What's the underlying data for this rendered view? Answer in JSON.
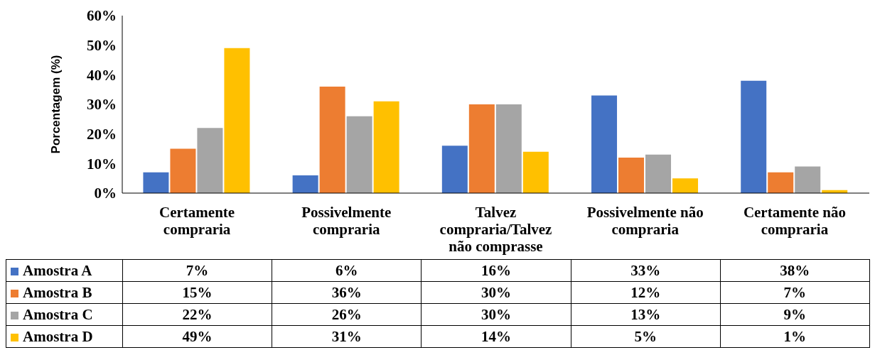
{
  "chart_data": {
    "type": "bar",
    "ylabel": "Porcentagem (%)",
    "categories": [
      "Certamente compraria",
      "Possivelmente compraria",
      "Talvez compraria/Talvez não comprasse",
      "Possivelmente não compraria",
      "Certamente não compraria"
    ],
    "series": [
      {
        "name": "Amostra A",
        "color": "#4472c4",
        "values": [
          7,
          6,
          16,
          33,
          38
        ],
        "value_labels": [
          "7%",
          "6%",
          "16%",
          "33%",
          "38%"
        ]
      },
      {
        "name": "Amostra B",
        "color": "#ed7d31",
        "values": [
          15,
          36,
          30,
          12,
          7
        ],
        "value_labels": [
          "15%",
          "36%",
          "30%",
          "12%",
          "7%"
        ]
      },
      {
        "name": "Amostra C",
        "color": "#a5a5a5",
        "values": [
          22,
          26,
          30,
          13,
          9
        ],
        "value_labels": [
          "22%",
          "26%",
          "30%",
          "13%",
          "9%"
        ]
      },
      {
        "name": "Amostra D",
        "color": "#ffc000",
        "values": [
          49,
          31,
          14,
          5,
          1
        ],
        "value_labels": [
          "49%",
          "31%",
          "14%",
          "5%",
          "1%"
        ]
      }
    ],
    "ylim": [
      0,
      60
    ],
    "yticks": [
      {
        "value": 0,
        "label": "0%"
      },
      {
        "value": 10,
        "label": "10%"
      },
      {
        "value": 20,
        "label": "20%"
      },
      {
        "value": 30,
        "label": "30%"
      },
      {
        "value": 40,
        "label": "40%"
      },
      {
        "value": 50,
        "label": "50%"
      },
      {
        "value": 60,
        "label": "60%"
      }
    ],
    "legend": "bottom"
  }
}
